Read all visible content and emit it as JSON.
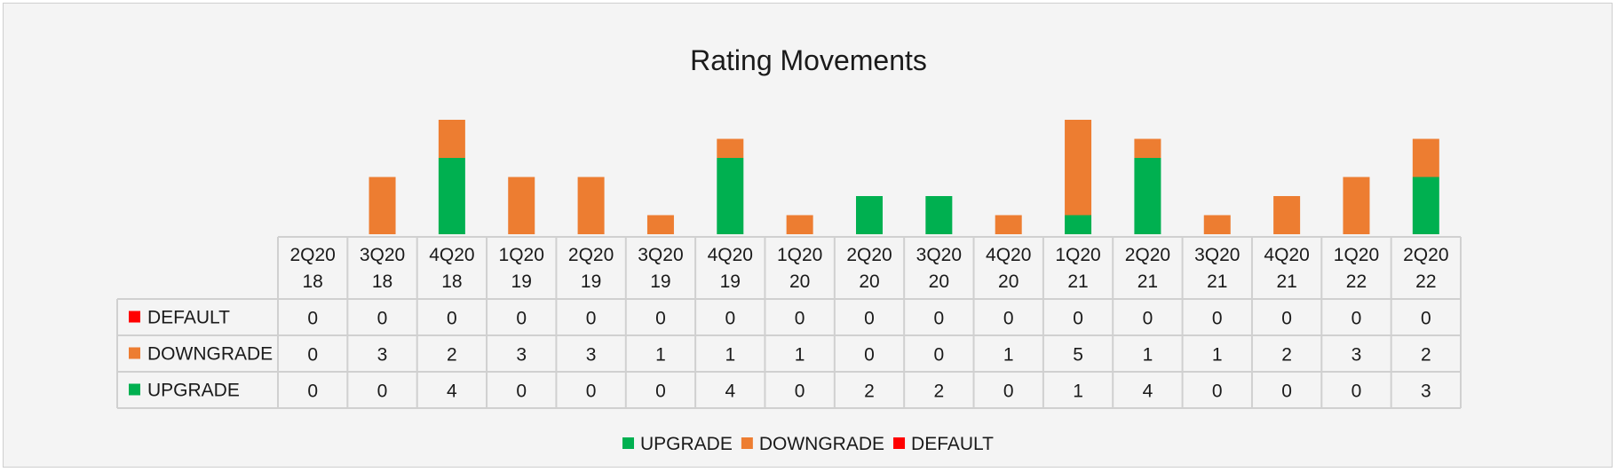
{
  "chart_data": {
    "type": "bar",
    "stacked": true,
    "title": "Rating Movements",
    "categories": [
      [
        "2Q20",
        "18"
      ],
      [
        "3Q20",
        "18"
      ],
      [
        "4Q20",
        "18"
      ],
      [
        "1Q20",
        "19"
      ],
      [
        "2Q20",
        "19"
      ],
      [
        "3Q20",
        "19"
      ],
      [
        "4Q20",
        "19"
      ],
      [
        "1Q20",
        "20"
      ],
      [
        "2Q20",
        "20"
      ],
      [
        "3Q20",
        "20"
      ],
      [
        "4Q20",
        "20"
      ],
      [
        "1Q20",
        "21"
      ],
      [
        "2Q20",
        "21"
      ],
      [
        "3Q20",
        "21"
      ],
      [
        "4Q20",
        "21"
      ],
      [
        "1Q20",
        "22"
      ],
      [
        "2Q20",
        "22"
      ]
    ],
    "series": [
      {
        "name": "UPGRADE",
        "color": "#00b050",
        "values": [
          0,
          0,
          4,
          0,
          0,
          0,
          4,
          0,
          2,
          2,
          0,
          1,
          4,
          0,
          0,
          0,
          3
        ]
      },
      {
        "name": "DOWNGRADE",
        "color": "#ed7d31",
        "values": [
          0,
          3,
          2,
          3,
          3,
          1,
          1,
          1,
          0,
          0,
          1,
          5,
          1,
          1,
          2,
          3,
          2
        ]
      },
      {
        "name": "DEFAULT",
        "color": "#ff0000",
        "values": [
          0,
          0,
          0,
          0,
          0,
          0,
          0,
          0,
          0,
          0,
          0,
          0,
          0,
          0,
          0,
          0,
          0
        ]
      }
    ],
    "table_row_order": [
      "DEFAULT",
      "DOWNGRADE",
      "UPGRADE"
    ],
    "legend_order": [
      "UPGRADE",
      "DOWNGRADE",
      "DEFAULT"
    ],
    "legend_position": "bottom",
    "data_table": true,
    "grid": false,
    "ylim": [
      0,
      6
    ]
  }
}
